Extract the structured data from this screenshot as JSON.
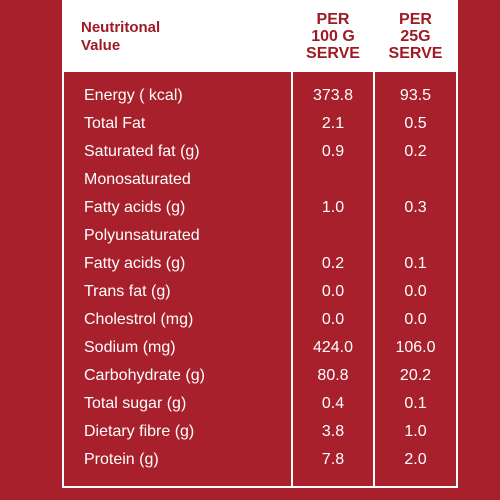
{
  "header": {
    "label_line1": "Neutritonal",
    "label_line2": "Value",
    "col1": [
      "PER",
      "100 G",
      "SERVE"
    ],
    "col2": [
      "PER",
      "25G",
      "SERVE"
    ]
  },
  "rows": [
    {
      "label": "Energy ( kcal)",
      "per100": "373.8",
      "per25": "93.5"
    },
    {
      "label": "Total Fat",
      "per100": "2.1",
      "per25": "0.5"
    },
    {
      "label": "Saturated fat (g)",
      "per100": "0.9",
      "per25": "0.2"
    },
    {
      "label": "Monosaturated",
      "label2": "Fatty acids (g)",
      "per100": "1.0",
      "per25": "0.3"
    },
    {
      "label": "Polyunsaturated",
      "label2": "Fatty acids (g)",
      "per100": "0.2",
      "per25": "0.1"
    },
    {
      "label": "Trans fat (g)",
      "per100": "0.0",
      "per25": "0.0"
    },
    {
      "label": "Cholestrol (mg)",
      "per100": "0.0",
      "per25": "0.0"
    },
    {
      "label": "Sodium (mg)",
      "per100": "424.0",
      "per25": "106.0"
    },
    {
      "label": "Carbohydrate (g)",
      "per100": "80.8",
      "per25": "20.2"
    },
    {
      "label": "Total sugar (g)",
      "per100": "0.4",
      "per25": "0.1"
    },
    {
      "label": "Dietary fibre (g)",
      "per100": "3.8",
      "per25": "1.0"
    },
    {
      "label": "Protein (g)",
      "per100": "7.8",
      "per25": "2.0"
    }
  ]
}
